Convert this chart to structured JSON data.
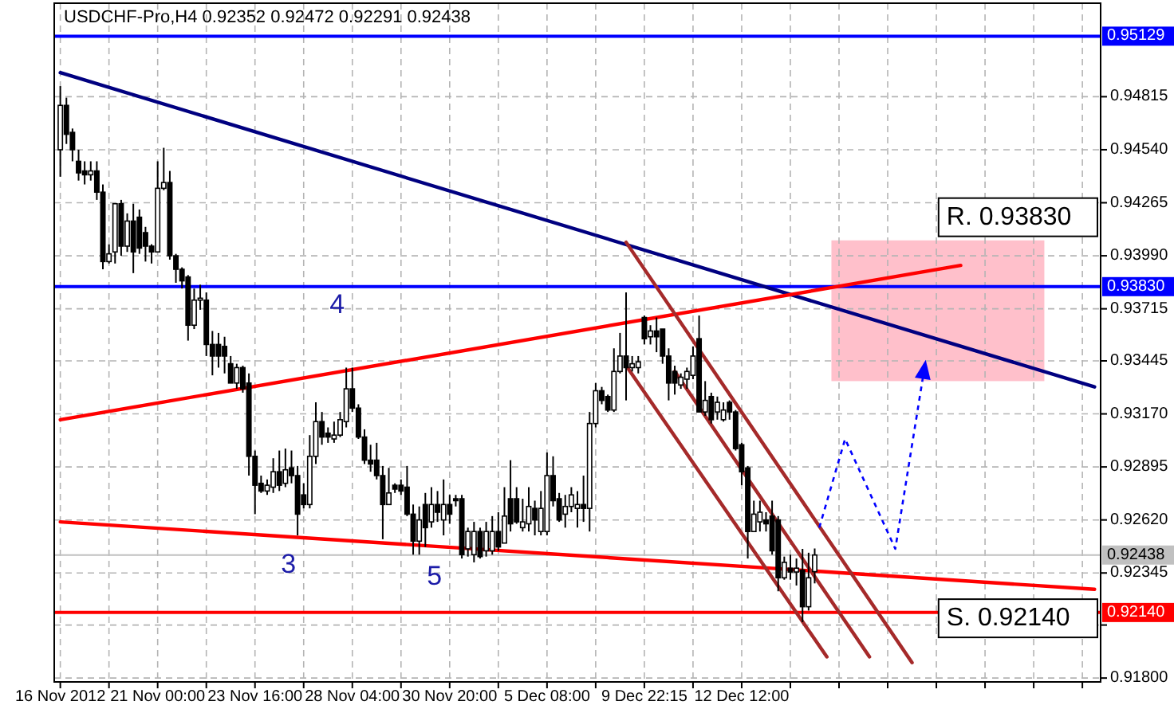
{
  "chart_data": {
    "type": "candlestick",
    "title": "USDCHF-Pro,H4  0.92352 0.92472 0.92291 0.92438",
    "categories": [
      "16 Nov 2012",
      null,
      null,
      null,
      null,
      null,
      null,
      null,
      null,
      null,
      null,
      null,
      null,
      null,
      null,
      null,
      "21 Nov 00:00",
      null,
      null,
      null,
      null,
      null,
      null,
      null,
      null,
      null,
      null,
      null,
      null,
      null,
      null,
      null,
      "23 Nov 16:00",
      null,
      null,
      null,
      null,
      null,
      null,
      null,
      null,
      null,
      null,
      null,
      null,
      null,
      null,
      null,
      "28 Nov 04:00",
      null,
      null,
      null,
      null,
      null,
      null,
      null,
      null,
      null,
      null,
      null,
      null,
      null,
      null,
      null,
      "30 Nov 20:00",
      null,
      null,
      null,
      null,
      null,
      null,
      null,
      null,
      null,
      null,
      null,
      null,
      null,
      null,
      null,
      "5 Dec 08:00",
      null,
      null,
      null,
      null,
      null,
      null,
      null,
      null,
      null,
      null,
      null,
      null,
      null,
      null,
      null,
      "9 Dec 22:15",
      null,
      null,
      null,
      null,
      null,
      null,
      null,
      null,
      null,
      null,
      null,
      null,
      null,
      null,
      null,
      "12 Dec 12:00",
      null,
      null,
      null,
      null,
      null,
      null,
      null,
      null,
      null,
      null,
      null,
      null,
      null,
      null,
      null,
      null,
      null,
      null,
      null,
      null,
      null,
      null,
      null,
      null,
      null,
      null,
      null,
      null,
      null,
      null,
      null,
      null,
      null,
      null,
      null,
      null,
      null,
      null,
      null,
      null,
      null,
      null,
      null,
      null,
      null,
      null,
      null,
      null,
      null,
      null,
      null,
      null,
      null,
      null,
      null,
      null,
      null,
      null
    ],
    "ohlc": [
      [
        0.9454,
        0.9487,
        0.944,
        0.9477
      ],
      [
        0.9477,
        0.9481,
        0.9457,
        0.9462
      ],
      [
        0.9463,
        0.9465,
        0.9448,
        0.9454
      ],
      [
        0.9448,
        0.9454,
        0.9438,
        0.9442
      ],
      [
        0.9443,
        0.9448,
        0.9436,
        0.9441
      ],
      [
        0.9441,
        0.9448,
        0.9438,
        0.9443
      ],
      [
        0.9443,
        0.9448,
        0.9428,
        0.9432
      ],
      [
        0.9432,
        0.9436,
        0.9392,
        0.9396
      ],
      [
        0.9396,
        0.9405,
        0.9395,
        0.94
      ],
      [
        0.9401,
        0.9426,
        0.9395,
        0.9426
      ],
      [
        0.9426,
        0.9428,
        0.9399,
        0.9404
      ],
      [
        0.9404,
        0.9421,
        0.9401,
        0.9417
      ],
      [
        0.9417,
        0.9426,
        0.939,
        0.9401
      ],
      [
        0.9419,
        0.9423,
        0.94,
        0.9403
      ],
      [
        0.9411,
        0.9414,
        0.9396,
        0.9404
      ],
      [
        0.9404,
        0.9405,
        0.9395,
        0.9401
      ],
      [
        0.9401,
        0.9448,
        0.9401,
        0.9434
      ],
      [
        0.9434,
        0.9455,
        0.9433,
        0.9437
      ],
      [
        0.9437,
        0.9443,
        0.9397,
        0.9399
      ],
      [
        0.9399,
        0.94,
        0.9385,
        0.9392
      ],
      [
        0.9392,
        0.9393,
        0.9382,
        0.9386
      ],
      [
        0.9388,
        0.9389,
        0.9355,
        0.9363
      ],
      [
        0.9363,
        0.9382,
        0.9361,
        0.9376
      ],
      [
        0.9376,
        0.9384,
        0.9371,
        0.9377
      ],
      [
        0.9376,
        0.938,
        0.9347,
        0.9353
      ],
      [
        0.9353,
        0.936,
        0.9337,
        0.9347
      ],
      [
        0.9353,
        0.9359,
        0.9341,
        0.9347
      ],
      [
        0.9352,
        0.9357,
        0.9338,
        0.9347
      ],
      [
        0.9343,
        0.9347,
        0.9333,
        0.9333
      ],
      [
        0.9333,
        0.9343,
        0.933,
        0.9341
      ],
      [
        0.9341,
        0.9342,
        0.9328,
        0.933
      ],
      [
        0.9333,
        0.9338,
        0.9285,
        0.9295
      ],
      [
        0.9295,
        0.9298,
        0.9265,
        0.928
      ],
      [
        0.9281,
        0.9285,
        0.9276,
        0.9277
      ],
      [
        0.9277,
        0.9283,
        0.9275,
        0.928
      ],
      [
        0.9279,
        0.9294,
        0.9276,
        0.9287
      ],
      [
        0.9287,
        0.9298,
        0.9277,
        0.928
      ],
      [
        0.9281,
        0.9299,
        0.9279,
        0.9288
      ],
      [
        0.9289,
        0.9298,
        0.9281,
        0.9285
      ],
      [
        0.9285,
        0.929,
        0.9254,
        0.9265
      ],
      [
        0.9275,
        0.9281,
        0.9268,
        0.927
      ],
      [
        0.927,
        0.9306,
        0.9268,
        0.9295
      ],
      [
        0.9295,
        0.9323,
        0.9291,
        0.9313
      ],
      [
        0.9313,
        0.9318,
        0.9301,
        0.9305
      ],
      [
        0.9307,
        0.931,
        0.9302,
        0.9305
      ],
      [
        0.9304,
        0.9313,
        0.9302,
        0.9306
      ],
      [
        0.9306,
        0.9318,
        0.9305,
        0.9314
      ],
      [
        0.9313,
        0.9341,
        0.931,
        0.933
      ],
      [
        0.933,
        0.9341,
        0.9318,
        0.932
      ],
      [
        0.932,
        0.9322,
        0.9304,
        0.9305
      ],
      [
        0.9305,
        0.9309,
        0.9291,
        0.9293
      ],
      [
        0.9293,
        0.9301,
        0.9287,
        0.9291
      ],
      [
        0.9293,
        0.9302,
        0.9283,
        0.9285
      ],
      [
        0.9285,
        0.929,
        0.9252,
        0.927
      ],
      [
        0.927,
        0.9289,
        0.927,
        0.9276
      ],
      [
        0.928,
        0.9281,
        0.9276,
        0.9278
      ],
      [
        0.928,
        0.9283,
        0.9275,
        0.9277
      ],
      [
        0.9279,
        0.929,
        0.9264,
        0.9265
      ],
      [
        0.9265,
        0.927,
        0.9244,
        0.9251
      ],
      [
        0.9251,
        0.9269,
        0.9244,
        0.9262
      ],
      [
        0.927,
        0.9276,
        0.9248,
        0.9258
      ],
      [
        0.9261,
        0.9279,
        0.9258,
        0.927
      ],
      [
        0.927,
        0.9277,
        0.9261,
        0.9266
      ],
      [
        0.9262,
        0.9283,
        0.9254,
        0.927
      ],
      [
        0.927,
        0.9275,
        0.926,
        0.9265
      ],
      [
        0.9273,
        0.9275,
        0.9269,
        0.9272
      ],
      [
        0.9273,
        0.9275,
        0.9242,
        0.9244
      ],
      [
        0.9247,
        0.9258,
        0.9243,
        0.9256
      ],
      [
        0.9244,
        0.9261,
        0.924,
        0.9256
      ],
      [
        0.9256,
        0.9258,
        0.9242,
        0.9243
      ],
      [
        0.9246,
        0.9261,
        0.9243,
        0.9256
      ],
      [
        0.9246,
        0.9264,
        0.9244,
        0.9256
      ],
      [
        0.9256,
        0.9266,
        0.9246,
        0.9248
      ],
      [
        0.925,
        0.9279,
        0.925,
        0.9264
      ],
      [
        0.9273,
        0.9293,
        0.9256,
        0.926
      ],
      [
        0.9273,
        0.9279,
        0.926,
        0.9261
      ],
      [
        0.9258,
        0.9273,
        0.9256,
        0.9261
      ],
      [
        0.926,
        0.9279,
        0.9256,
        0.9269
      ],
      [
        0.9268,
        0.9272,
        0.9254,
        0.9262
      ],
      [
        0.9256,
        0.9277,
        0.9254,
        0.9268
      ],
      [
        0.9256,
        0.9297,
        0.9254,
        0.9285
      ],
      [
        0.9285,
        0.9295,
        0.9269,
        0.9272
      ],
      [
        0.9273,
        0.9276,
        0.9261,
        0.9262
      ],
      [
        0.9265,
        0.9275,
        0.9258,
        0.9269
      ],
      [
        0.9269,
        0.9279,
        0.9266,
        0.9275
      ],
      [
        0.9268,
        0.9277,
        0.9258,
        0.927
      ],
      [
        0.927,
        0.9285,
        0.9261,
        0.9268
      ],
      [
        0.9268,
        0.9318,
        0.9256,
        0.9312
      ],
      [
        0.9312,
        0.9333,
        0.931,
        0.9329
      ],
      [
        0.9329,
        0.9331,
        0.9322,
        0.9324
      ],
      [
        0.9326,
        0.9327,
        0.9318,
        0.9319
      ],
      [
        0.9319,
        0.9351,
        0.9318,
        0.9339
      ],
      [
        0.9339,
        0.9359,
        0.9338,
        0.9347
      ],
      [
        0.9347,
        0.938,
        0.9324,
        0.9341
      ],
      [
        0.9341,
        0.9347,
        0.9339,
        0.9343
      ],
      [
        0.9341,
        0.9347,
        0.9338,
        0.9344
      ],
      [
        0.9367,
        0.9368,
        0.9353,
        0.9356
      ],
      [
        0.9357,
        0.9363,
        0.9353,
        0.936
      ],
      [
        0.936,
        0.9367,
        0.9349,
        0.9357
      ],
      [
        0.9361,
        0.9361,
        0.9343,
        0.9347
      ],
      [
        0.9347,
        0.9351,
        0.9324,
        0.9333
      ],
      [
        0.9339,
        0.9342,
        0.9327,
        0.9333
      ],
      [
        0.9332,
        0.9338,
        0.933,
        0.9336
      ],
      [
        0.9335,
        0.9341,
        0.933,
        0.9339
      ],
      [
        0.9337,
        0.9352,
        0.9335,
        0.9347
      ],
      [
        0.9356,
        0.9368,
        0.9318,
        0.9318
      ],
      [
        0.9318,
        0.9334,
        0.9316,
        0.9324
      ],
      [
        0.9326,
        0.9328,
        0.9312,
        0.9314
      ],
      [
        0.9318,
        0.9326,
        0.9314,
        0.9323
      ],
      [
        0.9314,
        0.9323,
        0.9313,
        0.9319
      ],
      [
        0.9323,
        0.9324,
        0.9314,
        0.9318
      ],
      [
        0.9318,
        0.9319,
        0.9298,
        0.9299
      ],
      [
        0.9301,
        0.9302,
        0.928,
        0.9287
      ],
      [
        0.9289,
        0.929,
        0.9242,
        0.9256
      ],
      [
        0.9256,
        0.9272,
        0.9256,
        0.9265
      ],
      [
        0.9261,
        0.9272,
        0.9256,
        0.9266
      ],
      [
        0.9262,
        0.9266,
        0.9256,
        0.926
      ],
      [
        0.9264,
        0.9272,
        0.9244,
        0.9246
      ],
      [
        0.9262,
        0.9264,
        0.9225,
        0.9232
      ],
      [
        0.9232,
        0.9243,
        0.9231,
        0.924
      ],
      [
        0.9237,
        0.9244,
        0.9231,
        0.9235
      ],
      [
        0.9235,
        0.9242,
        0.9228,
        0.9237
      ],
      [
        0.9236,
        0.9247,
        0.9209,
        0.9217
      ],
      [
        0.9217,
        0.9245,
        0.9215,
        0.9232
      ],
      [
        0.92352,
        0.92472,
        0.92291,
        0.92438
      ],
      null,
      null,
      null,
      null,
      null,
      null,
      null,
      null,
      null,
      null,
      null,
      null,
      null,
      null,
      null,
      null,
      null,
      null,
      null,
      null,
      null,
      null,
      null,
      null,
      null,
      null,
      null,
      null,
      null,
      null,
      null,
      null,
      null,
      null,
      null,
      null,
      null,
      null,
      null,
      null,
      null,
      null,
      null,
      null,
      null,
      null
    ],
    "series": [
      {
        "type": "line",
        "color": "#000080",
        "values": [
          0.9494,
          null,
          null,
          null,
          null,
          null,
          null,
          null,
          null,
          null,
          null,
          null,
          null,
          null,
          null,
          null,
          null,
          null,
          null,
          null,
          null,
          null,
          null,
          null,
          null,
          null,
          null,
          null,
          null,
          null,
          null,
          null,
          null,
          null,
          null,
          null,
          null,
          null,
          null,
          null,
          null,
          null,
          null,
          null,
          null,
          null,
          null,
          null,
          null,
          null,
          null,
          null,
          null,
          null,
          null,
          null,
          null,
          null,
          null,
          null,
          null,
          null,
          null,
          null,
          null,
          null,
          null,
          null,
          null,
          null,
          null,
          null,
          null,
          null,
          null,
          null,
          null,
          null,
          null,
          null,
          null,
          null,
          null,
          null,
          null,
          null,
          null,
          null,
          null,
          null,
          null,
          null,
          null,
          null,
          null,
          null,
          null,
          null,
          null,
          null,
          null,
          null,
          null,
          null,
          null,
          null,
          null,
          null,
          null,
          null,
          null,
          null,
          null,
          null,
          null,
          null,
          null,
          null,
          null,
          null,
          null,
          null,
          null,
          null,
          null,
          null,
          null,
          null,
          null,
          null,
          null,
          null,
          null,
          null,
          null,
          null,
          null,
          null,
          null,
          null,
          null,
          null,
          null,
          null,
          null,
          null,
          null,
          null,
          null,
          null,
          null,
          null,
          null,
          null,
          null,
          null,
          null,
          null,
          null,
          null,
          null,
          null,
          null,
          null,
          null,
          null,
          null,
          null,
          null,
          null,
          0.9331
        ]
      },
      {
        "type": "line",
        "color": "#ff0000",
        "values": [
          0.9314,
          null,
          null,
          null,
          null,
          null,
          null,
          null,
          null,
          null,
          null,
          null,
          null,
          null,
          null,
          null,
          null,
          null,
          null,
          null,
          null,
          null,
          null,
          null,
          null,
          null,
          null,
          null,
          null,
          null,
          null,
          null,
          null,
          null,
          null,
          null,
          null,
          null,
          null,
          null,
          null,
          null,
          null,
          null,
          null,
          null,
          null,
          null,
          null,
          null,
          null,
          null,
          null,
          null,
          null,
          null,
          null,
          null,
          null,
          null,
          null,
          null,
          null,
          null,
          null,
          null,
          null,
          null,
          null,
          null,
          null,
          null,
          null,
          null,
          null,
          null,
          null,
          null,
          null,
          null,
          null,
          null,
          null,
          null,
          null,
          null,
          null,
          null,
          null,
          null,
          null,
          null,
          null,
          null,
          null,
          null,
          null,
          null,
          null,
          null,
          null,
          null,
          null,
          null,
          null,
          null,
          null,
          null,
          null,
          null,
          null,
          null,
          null,
          null,
          null,
          null,
          null,
          null,
          null,
          null,
          null,
          null,
          null,
          null,
          null,
          null,
          null,
          null,
          null,
          null,
          null,
          null,
          null,
          null,
          null,
          null,
          null,
          null,
          null,
          null,
          null,
          null,
          null,
          null,
          null,
          null,
          null,
          null,
          0.9394,
          null,
          null,
          null,
          null,
          null,
          null,
          null,
          null,
          null,
          null,
          null,
          null,
          null,
          null,
          null,
          null,
          null,
          null,
          null,
          null,
          null,
          null
        ]
      },
      {
        "type": "line",
        "color": "#ff0000",
        "values": [
          0.9261,
          null,
          null,
          null,
          null,
          null,
          null,
          null,
          null,
          null,
          null,
          null,
          null,
          null,
          null,
          null,
          null,
          null,
          null,
          null,
          null,
          null,
          null,
          null,
          null,
          null,
          null,
          null,
          null,
          null,
          null,
          null,
          null,
          null,
          null,
          null,
          null,
          null,
          null,
          null,
          null,
          null,
          null,
          null,
          null,
          null,
          null,
          null,
          null,
          null,
          null,
          null,
          null,
          null,
          null,
          null,
          null,
          null,
          null,
          null,
          null,
          null,
          null,
          null,
          null,
          null,
          null,
          null,
          null,
          null,
          null,
          null,
          null,
          null,
          null,
          null,
          null,
          null,
          null,
          null,
          null,
          null,
          null,
          null,
          null,
          null,
          null,
          null,
          null,
          null,
          null,
          null,
          null,
          null,
          null,
          null,
          null,
          null,
          null,
          null,
          null,
          null,
          null,
          null,
          null,
          null,
          null,
          null,
          null,
          null,
          null,
          null,
          null,
          null,
          null,
          null,
          null,
          null,
          null,
          null,
          null,
          null,
          null,
          null,
          null,
          null,
          null,
          null,
          null,
          null,
          null,
          null,
          null,
          null,
          null,
          null,
          null,
          null,
          null,
          null,
          null,
          null,
          null,
          null,
          null,
          null,
          null,
          null,
          null,
          null,
          null,
          null,
          null,
          null,
          null,
          null,
          null,
          null,
          null,
          null,
          null,
          null,
          null,
          null,
          null,
          null,
          null,
          null,
          null,
          null,
          0.9226
        ]
      },
      {
        "type": "line",
        "color": "#a52a2a",
        "values": [
          null,
          null,
          null,
          null,
          null,
          null,
          null,
          null,
          null,
          null,
          null,
          null,
          null,
          null,
          null,
          null,
          null,
          null,
          null,
          null,
          null,
          null,
          null,
          null,
          null,
          null,
          null,
          null,
          null,
          null,
          null,
          null,
          null,
          null,
          null,
          null,
          null,
          null,
          null,
          null,
          null,
          null,
          null,
          null,
          null,
          null,
          null,
          null,
          null,
          null,
          null,
          null,
          null,
          null,
          null,
          null,
          null,
          null,
          null,
          null,
          null,
          null,
          null,
          null,
          null,
          null,
          null,
          null,
          null,
          null,
          null,
          null,
          null,
          null,
          null,
          null,
          null,
          null,
          null,
          null,
          null,
          null,
          null,
          null,
          null,
          null,
          null,
          null,
          null,
          null,
          null,
          null,
          null,
          0.9406,
          null,
          null,
          null,
          null,
          null,
          null,
          null,
          null,
          null,
          null,
          null,
          null,
          null,
          null,
          null,
          null,
          null,
          null,
          null,
          null,
          null,
          null,
          null,
          null,
          null,
          null,
          null,
          null,
          null,
          null,
          null,
          null,
          null,
          null,
          null,
          null,
          null,
          null,
          null,
          null,
          null,
          null,
          null,
          null,
          null,
          null,
          0.9188,
          null,
          null,
          null,
          null,
          null,
          null,
          null,
          null,
          null,
          null,
          null,
          null,
          null,
          null,
          null,
          null,
          null,
          null,
          null,
          null,
          null,
          null,
          null,
          null,
          null,
          null,
          null,
          null,
          null,
          null
        ]
      },
      {
        "type": "line",
        "color": "#a52a2a",
        "values": [
          null,
          null,
          null,
          null,
          null,
          null,
          null,
          null,
          null,
          null,
          null,
          null,
          null,
          null,
          null,
          null,
          null,
          null,
          null,
          null,
          null,
          null,
          null,
          null,
          null,
          null,
          null,
          null,
          null,
          null,
          null,
          null,
          null,
          null,
          null,
          null,
          null,
          null,
          null,
          null,
          null,
          null,
          null,
          null,
          null,
          null,
          null,
          null,
          null,
          null,
          null,
          null,
          null,
          null,
          null,
          null,
          null,
          null,
          null,
          null,
          null,
          null,
          null,
          null,
          null,
          null,
          null,
          null,
          null,
          null,
          null,
          null,
          null,
          null,
          null,
          null,
          null,
          null,
          null,
          null,
          null,
          null,
          null,
          null,
          null,
          null,
          null,
          null,
          null,
          null,
          null,
          null,
          null,
          0.9342,
          null,
          null,
          null,
          null,
          null,
          null,
          null,
          null,
          null,
          null,
          null,
          null,
          null,
          null,
          null,
          null,
          null,
          null,
          null,
          null,
          null,
          null,
          null,
          null,
          null,
          null,
          null,
          null,
          null,
          null,
          null,
          null,
          0.9191,
          null,
          null,
          null,
          null,
          null,
          null,
          null,
          null,
          null,
          null,
          null,
          null,
          null,
          null,
          null,
          null,
          null,
          null,
          null,
          null,
          null,
          null,
          null,
          null,
          null,
          null,
          null,
          null,
          null,
          null,
          null,
          null,
          null,
          null,
          null,
          null,
          null,
          null,
          null,
          null,
          null,
          null,
          null,
          null
        ]
      },
      {
        "type": "line",
        "color": "#a52a2a",
        "values": [
          null,
          null,
          null,
          null,
          null,
          null,
          null,
          null,
          null,
          null,
          null,
          null,
          null,
          null,
          null,
          null,
          null,
          null,
          null,
          null,
          null,
          null,
          null,
          null,
          null,
          null,
          null,
          null,
          null,
          null,
          null,
          null,
          null,
          null,
          null,
          null,
          null,
          null,
          null,
          null,
          null,
          null,
          null,
          null,
          null,
          null,
          null,
          null,
          null,
          null,
          null,
          null,
          null,
          null,
          null,
          null,
          null,
          null,
          null,
          null,
          null,
          null,
          null,
          null,
          null,
          null,
          null,
          null,
          null,
          null,
          null,
          null,
          null,
          null,
          null,
          null,
          null,
          null,
          null,
          null,
          null,
          null,
          null,
          null,
          null,
          null,
          null,
          null,
          null,
          null,
          null,
          null,
          null,
          null,
          null,
          null,
          null,
          null,
          null,
          null,
          null,
          0.9339,
          null,
          null,
          null,
          null,
          null,
          null,
          null,
          null,
          null,
          null,
          null,
          null,
          null,
          null,
          null,
          null,
          null,
          null,
          null,
          null,
          null,
          null,
          null,
          null,
          null,
          null,
          null,
          null,
          null,
          null,
          null,
          0.9191,
          null,
          null,
          null,
          null,
          null,
          null,
          null,
          null,
          null,
          null,
          null,
          null,
          null,
          null,
          null,
          null,
          null,
          null,
          null,
          null,
          null,
          null,
          null,
          null,
          null,
          null,
          null,
          null,
          null,
          null,
          null,
          null,
          null,
          null,
          null,
          null,
          null
        ]
      }
    ],
    "ref_lines": [
      {
        "axis": "y",
        "value": 0.95129,
        "label": "0.95129",
        "color": "#0000ff"
      },
      {
        "axis": "y",
        "value": 0.9383,
        "label": "0.93830",
        "color": "#0000ff"
      },
      {
        "axis": "y",
        "value": 0.9214,
        "label": "0.92140",
        "color": "#ff0000"
      },
      {
        "axis": "y",
        "value": 0.92438,
        "label": "0.92438",
        "color": "#c0c0c0"
      }
    ],
    "annotations": [
      "4",
      "3",
      "5",
      "R. 0.93830",
      "S. 0.92140"
    ],
    "ylim": [
      0.9178,
      0.953
    ],
    "yticks": [
      {
        "value": 0.918,
        "label": "0.91800"
      },
      {
        "value": 0.92075,
        "label": null
      },
      {
        "value": 0.92345,
        "label": "0.92345"
      },
      {
        "value": 0.9262,
        "label": "0.92620"
      },
      {
        "value": 0.92895,
        "label": "0.92895"
      },
      {
        "value": 0.9317,
        "label": "0.93170"
      },
      {
        "value": 0.93445,
        "label": "0.93445"
      },
      {
        "value": 0.93715,
        "label": "0.93715"
      },
      {
        "value": 0.9399,
        "label": "0.93990"
      },
      {
        "value": 0.94265,
        "label": "0.94265"
      },
      {
        "value": 0.9454,
        "label": "0.94540"
      },
      {
        "value": 0.94815,
        "label": "0.94815"
      }
    ],
    "grid": true
  }
}
